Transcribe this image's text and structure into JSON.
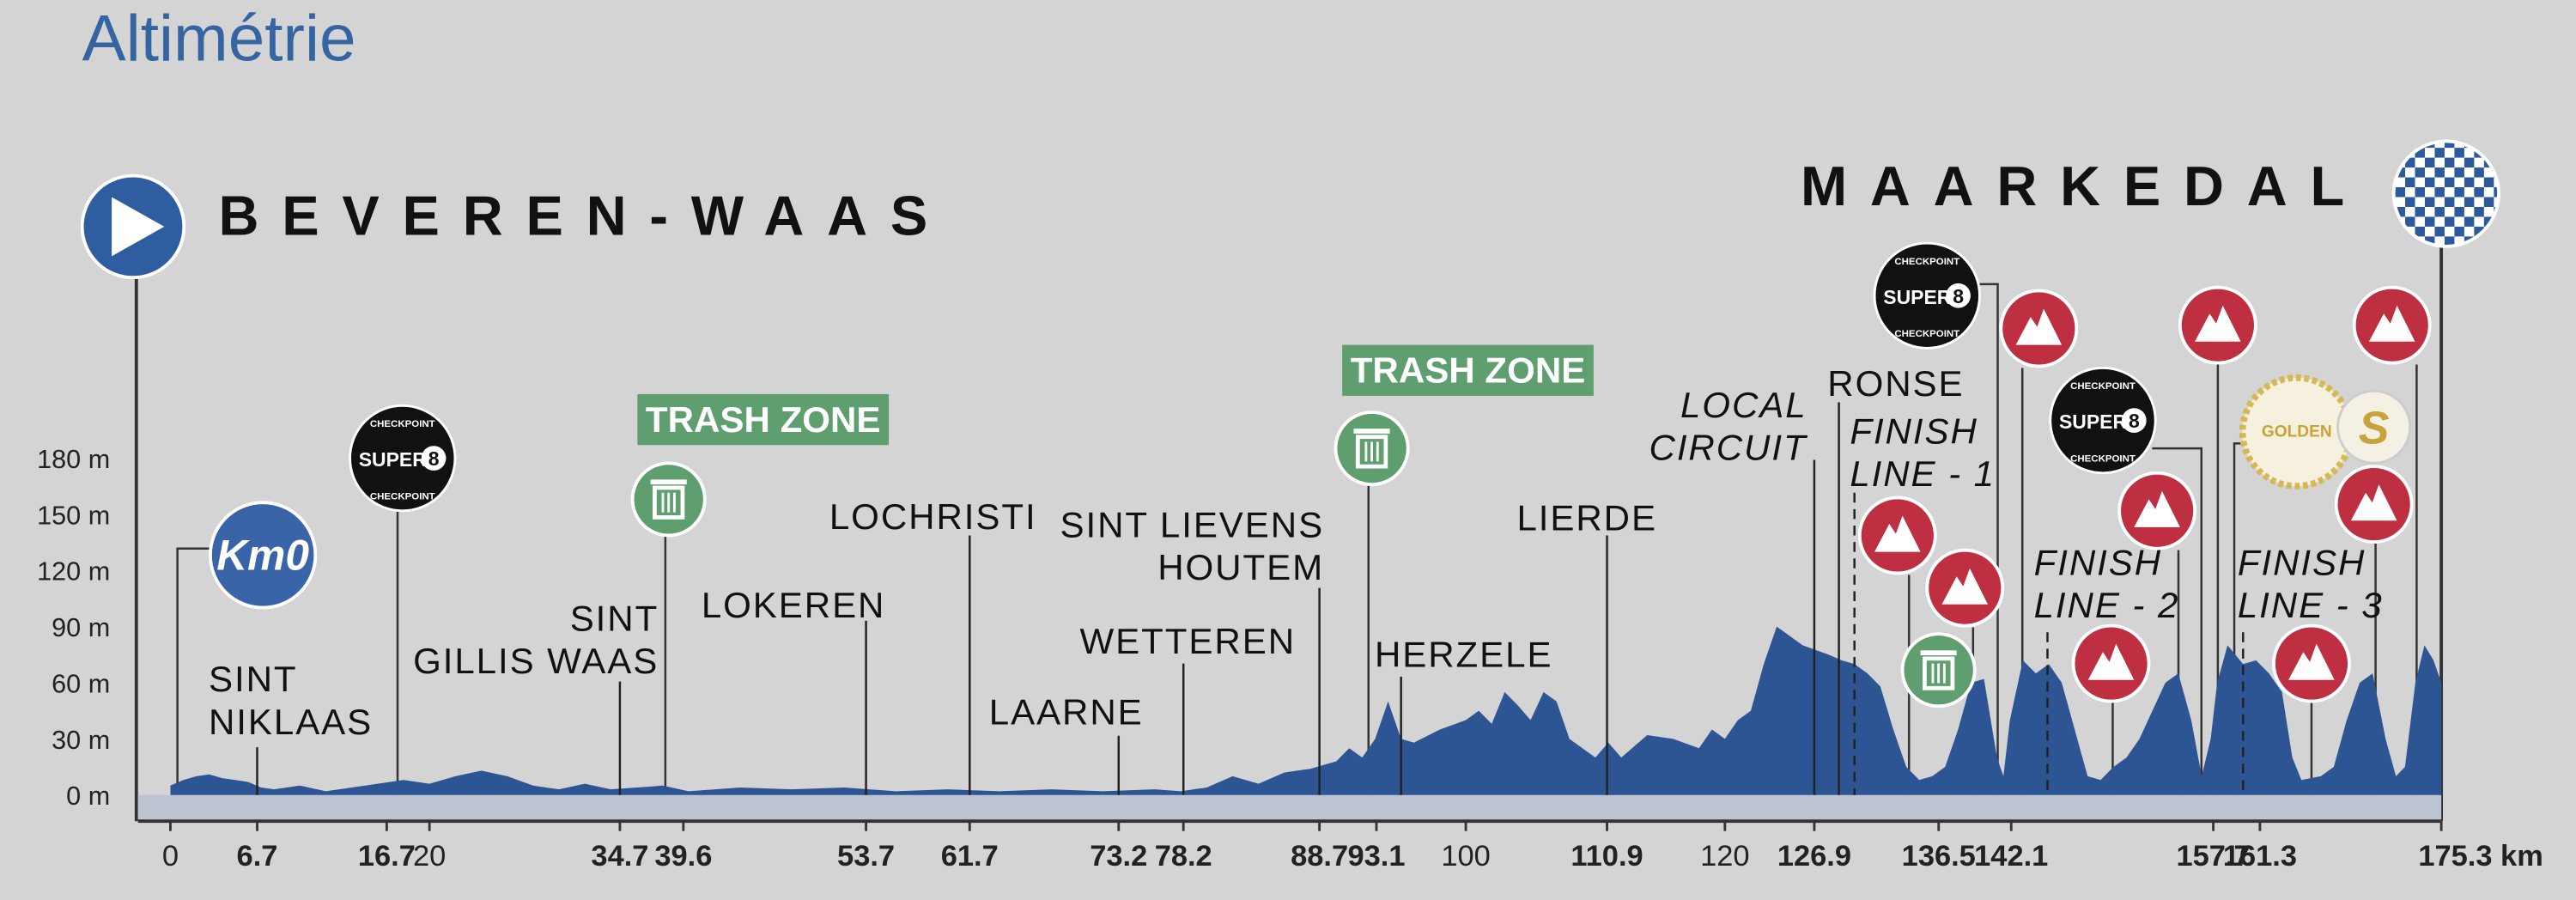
{
  "chart_data": {
    "type": "area",
    "title": "Altimétrie",
    "start": "BEVEREN-WAAS",
    "finish": "MAARKEDAL",
    "color": "#2d5593",
    "x": [
      0,
      1,
      2,
      3,
      4,
      5,
      6,
      7,
      8,
      10,
      12,
      14,
      16,
      18,
      20,
      22,
      24,
      26,
      28,
      30,
      32,
      34,
      36,
      38,
      40,
      44,
      48,
      52,
      56,
      60,
      64,
      68,
      72,
      76,
      78,
      80,
      82,
      84,
      86,
      88,
      90,
      91,
      92,
      93,
      94,
      95,
      96,
      98,
      100,
      101,
      102,
      103,
      104,
      105,
      106,
      107,
      108,
      109,
      110,
      111,
      112,
      114,
      116,
      118,
      119,
      120,
      121,
      122,
      123,
      124,
      125,
      126,
      128,
      129,
      130,
      131,
      132,
      133,
      134,
      135,
      136,
      137,
      138,
      139,
      140,
      141,
      141.5,
      142,
      143,
      144,
      145,
      146,
      147,
      148,
      149,
      150,
      151,
      152,
      153,
      154,
      155,
      156,
      156.8,
      157.5,
      158,
      158.8,
      160,
      161,
      162,
      163,
      163.8,
      164.5,
      166,
      167,
      168,
      169,
      170,
      171,
      171.8,
      172.5,
      173.3,
      174,
      174.7,
      175.3
    ],
    "values": [
      5,
      8,
      10,
      11,
      9,
      8,
      7,
      4,
      3,
      5,
      2,
      4,
      6,
      8,
      6,
      10,
      13,
      10,
      5,
      3,
      6,
      3,
      4,
      5,
      2,
      4,
      3,
      4,
      2,
      3,
      2,
      3,
      2,
      3,
      2,
      4,
      10,
      6,
      12,
      14,
      18,
      25,
      20,
      30,
      50,
      30,
      28,
      35,
      40,
      45,
      38,
      55,
      48,
      40,
      55,
      50,
      30,
      25,
      20,
      28,
      20,
      32,
      30,
      25,
      35,
      30,
      40,
      45,
      70,
      90,
      85,
      80,
      75,
      72,
      70,
      65,
      58,
      35,
      15,
      8,
      10,
      15,
      35,
      60,
      62,
      20,
      10,
      40,
      72,
      65,
      70,
      60,
      35,
      10,
      8,
      15,
      20,
      30,
      45,
      60,
      65,
      40,
      10,
      30,
      60,
      80,
      70,
      72,
      65,
      55,
      20,
      8,
      10,
      15,
      40,
      60,
      65,
      30,
      10,
      15,
      60,
      80,
      72,
      60
    ],
    "xlim": [
      -2.5,
      175.3
    ],
    "ylim": [
      -14,
      180
    ],
    "yticks": [
      {
        "value": 0,
        "label": "0 m"
      },
      {
        "value": 30,
        "label": "30 m"
      },
      {
        "value": 60,
        "label": "60 m"
      },
      {
        "value": 90,
        "label": "90 m"
      },
      {
        "value": 120,
        "label": "120 m"
      },
      {
        "value": 150,
        "label": "150 m"
      },
      {
        "value": 180,
        "label": "180 m"
      }
    ],
    "xticks": [
      0,
      6.7,
      16.7,
      20,
      34.7,
      39.6,
      53.7,
      61.7,
      73.2,
      78.2,
      88.7,
      93.1,
      100,
      110.9,
      120,
      126.9,
      136.5,
      142.1,
      157.7,
      161.3,
      {
        "value": 175.3,
        "label": "175.3 km"
      }
    ],
    "xtick_bold": [
      false,
      true,
      true,
      false,
      true,
      true,
      true,
      true,
      true,
      true,
      true,
      true,
      false,
      true,
      false,
      true,
      true,
      true,
      true,
      true,
      true
    ],
    "places": [
      {
        "km": 6.7,
        "lines": [
          "SINT",
          "NIKLAAS"
        ]
      },
      {
        "km": 34.7,
        "lines": [
          "SINT",
          "GILLIS WAAS"
        ]
      },
      {
        "km": 53.7,
        "lines": [
          "LOKEREN"
        ]
      },
      {
        "km": 61.7,
        "lines": [
          "LOCHRISTI"
        ]
      },
      {
        "km": 73.2,
        "lines": [
          "LAARNE"
        ]
      },
      {
        "km": 78.2,
        "lines": [
          "WETTEREN"
        ]
      },
      {
        "km": 88.7,
        "lines": [
          "SINT LIEVENS",
          "HOUTEM"
        ]
      },
      {
        "km": 95,
        "lines": [
          "HERZELE"
        ]
      },
      {
        "km": 110.9,
        "lines": [
          "LIERDE"
        ]
      },
      {
        "km": 126.9,
        "lines": [
          "LOCAL",
          "CIRCUIT"
        ],
        "italic": true
      },
      {
        "km": 128.8,
        "lines": [
          "RONSE"
        ]
      },
      {
        "km": 130,
        "lines": [
          "FINISH",
          "LINE - 1"
        ],
        "italic": true,
        "dashed": true
      },
      {
        "km": 144.9,
        "lines": [
          "FINISH",
          "LINE - 2"
        ],
        "italic": true,
        "dashed": true
      },
      {
        "km": 160,
        "lines": [
          "FINISH",
          "LINE - 3"
        ],
        "italic": true,
        "dashed": true
      }
    ],
    "icons": {
      "km0": "Km0",
      "checkpoint": "CHECKPOINT",
      "super": "SUPER",
      "eight": "8",
      "trash_zone": "TRASH ZONE",
      "golden": "GOLDEN",
      "sprint": "S"
    }
  }
}
